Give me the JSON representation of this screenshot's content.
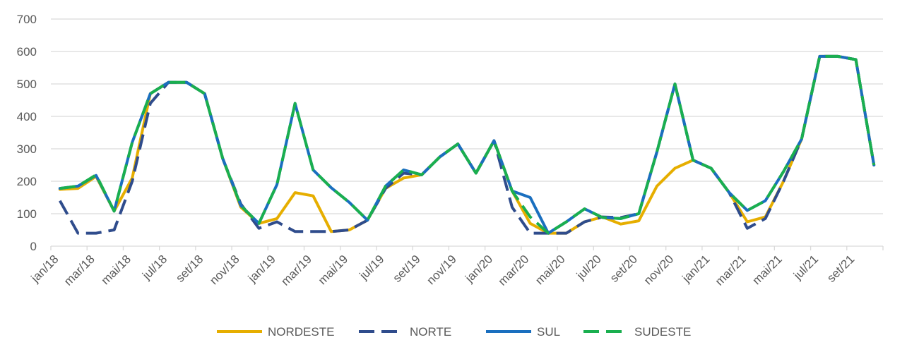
{
  "chart_data": {
    "type": "line",
    "title": "",
    "xlabel": "",
    "ylabel": "",
    "ylim": [
      0,
      700
    ],
    "yticks": [
      0,
      100,
      200,
      300,
      400,
      500,
      600,
      700
    ],
    "grid": true,
    "legend_position": "bottom",
    "x": [
      "jan/18",
      "fev/18",
      "mar/18",
      "abr/18",
      "mai/18",
      "jun/18",
      "jul/18",
      "ago/18",
      "set/18",
      "out/18",
      "nov/18",
      "dez/18",
      "jan/19",
      "fev/19",
      "mar/19",
      "abr/19",
      "mai/19",
      "jun/19",
      "jul/19",
      "ago/19",
      "set/19",
      "out/19",
      "nov/19",
      "dez/19",
      "jan/20",
      "fev/20",
      "mar/20",
      "abr/20",
      "mai/20",
      "jun/20",
      "jul/20",
      "ago/20",
      "set/20",
      "out/20",
      "nov/20",
      "dez/20",
      "jan/21",
      "fev/21",
      "mar/21",
      "abr/21",
      "mai/21",
      "jun/21",
      "jul/21",
      "ago/21",
      "set/21",
      "out/21"
    ],
    "xtick_labels": [
      "jan/18",
      "mar/18",
      "mai/18",
      "jul/18",
      "set/18",
      "nov/18",
      "jan/19",
      "mar/19",
      "mai/19",
      "jul/19",
      "set/19",
      "nov/19",
      "jan/20",
      "mar/20",
      "mai/20",
      "jul/20",
      "set/20",
      "nov/20",
      "jan/21",
      "mar/21",
      "mai/21",
      "jul/21",
      "set/21"
    ],
    "series": [
      {
        "name": "NORDESTE",
        "color": "#E6AE00",
        "dash": "solid",
        "values": [
          175,
          178,
          215,
          108,
          210,
          470,
          505,
          505,
          470,
          270,
          120,
          70,
          85,
          165,
          155,
          45,
          50,
          80,
          178,
          210,
          220,
          275,
          315,
          225,
          325,
          170,
          70,
          40,
          40,
          75,
          90,
          68,
          78,
          185,
          240,
          265,
          240,
          165,
          75,
          90,
          200,
          330,
          585,
          585,
          575,
          250
        ]
      },
      {
        "name": "NORTE",
        "color": "#2F4C8C",
        "dash": "dashed",
        "values": [
          140,
          40,
          40,
          50,
          200,
          440,
          505,
          505,
          470,
          270,
          130,
          55,
          75,
          45,
          45,
          45,
          50,
          80,
          178,
          225,
          220,
          275,
          315,
          225,
          325,
          120,
          40,
          40,
          40,
          75,
          90,
          88,
          100,
          290,
          500,
          265,
          240,
          165,
          55,
          85,
          200,
          330,
          585,
          585,
          575,
          250
        ]
      },
      {
        "name": "SUL",
        "color": "#1A6FBF",
        "dash": "solid",
        "values": [
          178,
          185,
          218,
          108,
          320,
          470,
          505,
          505,
          470,
          270,
          125,
          70,
          190,
          440,
          235,
          180,
          135,
          80,
          185,
          235,
          220,
          275,
          315,
          225,
          325,
          170,
          150,
          40,
          75,
          115,
          88,
          85,
          100,
          290,
          500,
          265,
          240,
          165,
          110,
          140,
          230,
          330,
          585,
          585,
          575,
          250
        ]
      },
      {
        "name": "SUDESTE",
        "color": "#1AAF4F",
        "dash": "dashed",
        "values": [
          178,
          185,
          220,
          108,
          320,
          470,
          505,
          505,
          470,
          270,
          125,
          70,
          190,
          440,
          235,
          180,
          135,
          80,
          185,
          235,
          220,
          275,
          315,
          225,
          325,
          170,
          90,
          40,
          75,
          115,
          88,
          85,
          100,
          290,
          500,
          265,
          240,
          165,
          110,
          140,
          230,
          330,
          585,
          585,
          575,
          250
        ]
      }
    ]
  }
}
